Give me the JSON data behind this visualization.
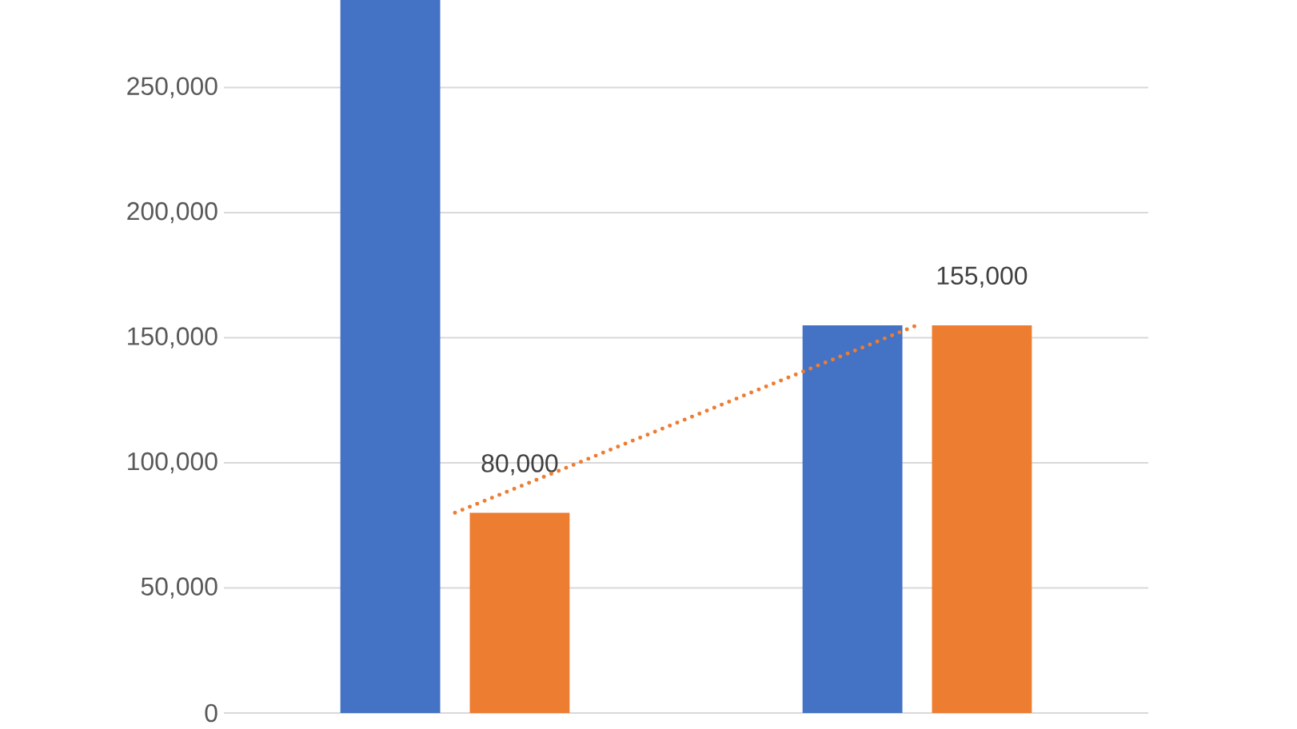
{
  "chart_data": {
    "type": "bar",
    "categories": [
      null,
      null
    ],
    "series": [
      {
        "color": "#4472c4",
        "values": [
          285000,
          155000
        ]
      },
      {
        "color": "#ed7d31",
        "values": [
          80000,
          155000
        ],
        "value_labels": [
          "80,000",
          "155,000"
        ]
      },
      {
        "type": "line",
        "color": "#ed7d31",
        "line_style": "dotted",
        "values": [
          80000,
          155000
        ]
      }
    ],
    "ylim": [
      0,
      285000
    ],
    "yticks": [
      {
        "value": 0,
        "label": "0"
      },
      {
        "value": 50000,
        "label": "50,000"
      },
      {
        "value": 100000,
        "label": "100,000"
      },
      {
        "value": 150000,
        "label": "150,000"
      },
      {
        "value": 200000,
        "label": "200,000"
      },
      {
        "value": 250000,
        "label": "250,000"
      }
    ],
    "grid": "y"
  }
}
